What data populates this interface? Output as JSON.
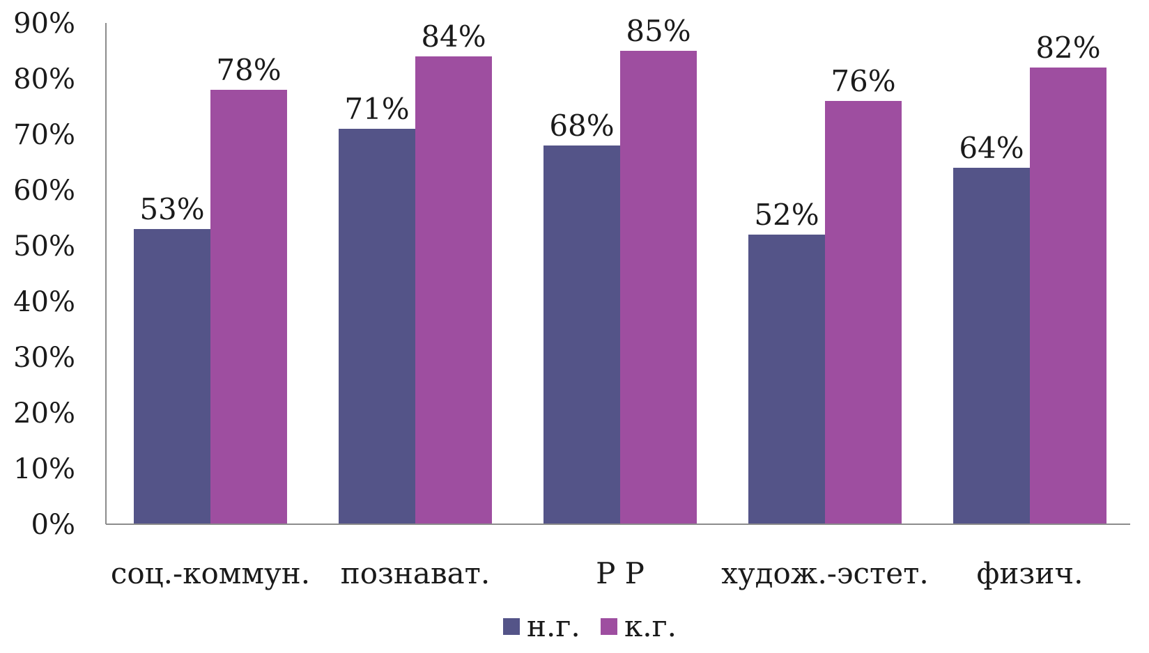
{
  "chart_data": {
    "type": "bar",
    "categories": [
      "соц.-коммун.",
      "познават.",
      "Р Р",
      "худож.-эстет.",
      "физич."
    ],
    "series": [
      {
        "name": "н.г.",
        "color": "#545488",
        "values": [
          53,
          71,
          68,
          52,
          64
        ],
        "labels": [
          "53%",
          "71%",
          "68%",
          "52%",
          "64%"
        ]
      },
      {
        "name": "к.г.",
        "color": "#9e4ea0",
        "values": [
          78,
          84,
          85,
          76,
          82
        ],
        "labels": [
          "78%",
          "84%",
          "85%",
          "76%",
          "82%"
        ]
      }
    ],
    "ylim": [
      0,
      90
    ],
    "yticks": [
      0,
      10,
      20,
      30,
      40,
      50,
      60,
      70,
      80,
      90
    ],
    "ytick_labels": [
      "0%",
      "10%",
      "20%",
      "30%",
      "40%",
      "50%",
      "60%",
      "70%",
      "80%",
      "90%"
    ],
    "title": "",
    "xlabel": "",
    "ylabel": "",
    "grid": false,
    "legend_position": "bottom-center"
  }
}
